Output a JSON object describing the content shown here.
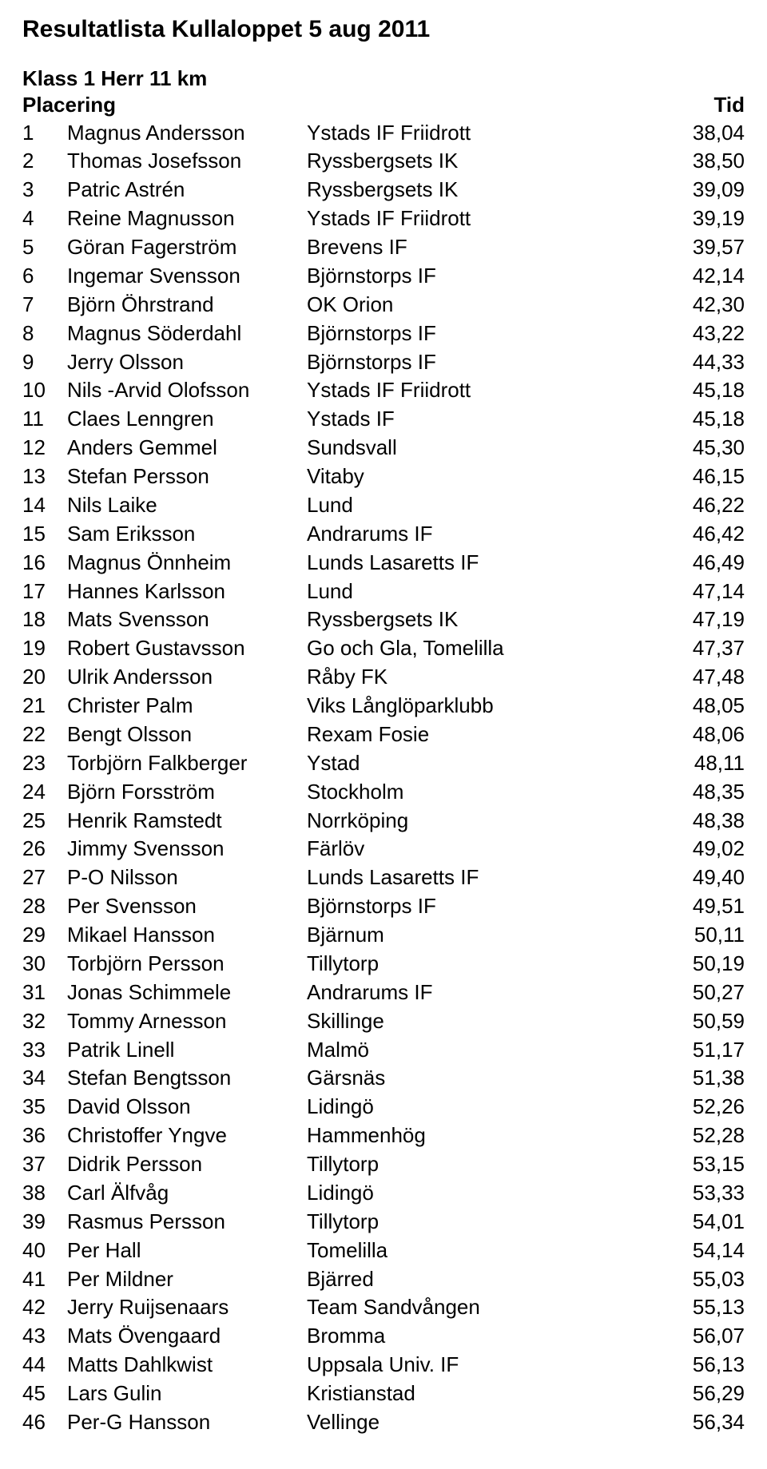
{
  "title": "Resultatlista Kullaloppet 5 aug 2011",
  "subtitle": "Klass 1 Herr 11 km",
  "headers": {
    "place": "Placering",
    "time": "Tid"
  },
  "rows": [
    {
      "p": "1",
      "name": "Magnus Andersson",
      "club": "Ystads IF Friidrott",
      "t": "38,04"
    },
    {
      "p": "2",
      "name": "Thomas Josefsson",
      "club": "Ryssbergsets IK",
      "t": "38,50"
    },
    {
      "p": "3",
      "name": "Patric Astrén",
      "club": "Ryssbergsets IK",
      "t": "39,09"
    },
    {
      "p": "4",
      "name": "Reine Magnusson",
      "club": "Ystads IF Friidrott",
      "t": "39,19"
    },
    {
      "p": "5",
      "name": "Göran Fagerström",
      "club": "Brevens IF",
      "t": "39,57"
    },
    {
      "p": "6",
      "name": "Ingemar Svensson",
      "club": "Björnstorps IF",
      "t": "42,14"
    },
    {
      "p": "7",
      "name": "Björn Öhrstrand",
      "club": "OK Orion",
      "t": "42,30"
    },
    {
      "p": "8",
      "name": "Magnus Söderdahl",
      "club": "Björnstorps IF",
      "t": "43,22"
    },
    {
      "p": "9",
      "name": "Jerry Olsson",
      "club": "Björnstorps IF",
      "t": "44,33"
    },
    {
      "p": "10",
      "name": "Nils -Arvid Olofsson",
      "club": "Ystads IF Friidrott",
      "t": "45,18"
    },
    {
      "p": "11",
      "name": "Claes Lenngren",
      "club": "Ystads IF",
      "t": "45,18"
    },
    {
      "p": "12",
      "name": "Anders Gemmel",
      "club": "Sundsvall",
      "t": "45,30"
    },
    {
      "p": "13",
      "name": "Stefan Persson",
      "club": "Vitaby",
      "t": "46,15"
    },
    {
      "p": "14",
      "name": "Nils Laike",
      "club": "Lund",
      "t": "46,22"
    },
    {
      "p": "15",
      "name": "Sam Eriksson",
      "club": "Andrarums IF",
      "t": "46,42"
    },
    {
      "p": "16",
      "name": "Magnus Önnheim",
      "club": "Lunds Lasaretts IF",
      "t": "46,49"
    },
    {
      "p": "17",
      "name": "Hannes Karlsson",
      "club": "Lund",
      "t": "47,14"
    },
    {
      "p": "18",
      "name": "Mats Svensson",
      "club": "Ryssbergsets IK",
      "t": "47,19"
    },
    {
      "p": "19",
      "name": "Robert Gustavsson",
      "club": "Go och Gla, Tomelilla",
      "t": "47,37"
    },
    {
      "p": "20",
      "name": "Ulrik Andersson",
      "club": "Råby FK",
      "t": "47,48"
    },
    {
      "p": "21",
      "name": "Christer Palm",
      "club": "Viks Långlöparklubb",
      "t": "48,05"
    },
    {
      "p": "22",
      "name": "Bengt Olsson",
      "club": "Rexam Fosie",
      "t": "48,06"
    },
    {
      "p": "23",
      "name": "Torbjörn Falkberger",
      "club": "Ystad",
      "t": "48,11"
    },
    {
      "p": "24",
      "name": "Björn Forsström",
      "club": "Stockholm",
      "t": "48,35"
    },
    {
      "p": "25",
      "name": "Henrik Ramstedt",
      "club": "Norrköping",
      "t": "48,38"
    },
    {
      "p": "26",
      "name": "Jimmy Svensson",
      "club": "Färlöv",
      "t": "49,02"
    },
    {
      "p": "27",
      "name": "P-O Nilsson",
      "club": "Lunds Lasaretts IF",
      "t": "49,40"
    },
    {
      "p": "28",
      "name": "Per Svensson",
      "club": "Björnstorps IF",
      "t": "49,51"
    },
    {
      "p": "29",
      "name": "Mikael Hansson",
      "club": "Bjärnum",
      "t": "50,11"
    },
    {
      "p": "30",
      "name": "Torbjörn Persson",
      "club": "Tillytorp",
      "t": "50,19"
    },
    {
      "p": "31",
      "name": "Jonas Schimmele",
      "club": "Andrarums IF",
      "t": "50,27"
    },
    {
      "p": "32",
      "name": "Tommy Arnesson",
      "club": "Skillinge",
      "t": "50,59"
    },
    {
      "p": "33",
      "name": "Patrik Linell",
      "club": "Malmö",
      "t": "51,17"
    },
    {
      "p": "34",
      "name": "Stefan Bengtsson",
      "club": "Gärsnäs",
      "t": "51,38"
    },
    {
      "p": "35",
      "name": "David Olsson",
      "club": "Lidingö",
      "t": "52,26"
    },
    {
      "p": "36",
      "name": "Christoffer Yngve",
      "club": "Hammenhög",
      "t": "52,28"
    },
    {
      "p": "37",
      "name": "Didrik Persson",
      "club": "Tillytorp",
      "t": "53,15"
    },
    {
      "p": "38",
      "name": "Carl Älfvåg",
      "club": "Lidingö",
      "t": "53,33"
    },
    {
      "p": "39",
      "name": "Rasmus Persson",
      "club": "Tillytorp",
      "t": "54,01"
    },
    {
      "p": "40",
      "name": "Per Hall",
      "club": "Tomelilla",
      "t": "54,14"
    },
    {
      "p": "41",
      "name": "Per Mildner",
      "club": "Bjärred",
      "t": "55,03"
    },
    {
      "p": "42",
      "name": "Jerry Ruijsenaars",
      "club": "Team Sandvången",
      "t": "55,13"
    },
    {
      "p": "43",
      "name": "Mats Övengaard",
      "club": "Bromma",
      "t": "56,07"
    },
    {
      "p": "44",
      "name": "Matts Dahlkwist",
      "club": "Uppsala Univ. IF",
      "t": "56,13"
    },
    {
      "p": "45",
      "name": "Lars Gulin",
      "club": "Kristianstad",
      "t": "56,29"
    },
    {
      "p": "46",
      "name": "Per-G Hansson",
      "club": "Vellinge",
      "t": "56,34"
    }
  ]
}
